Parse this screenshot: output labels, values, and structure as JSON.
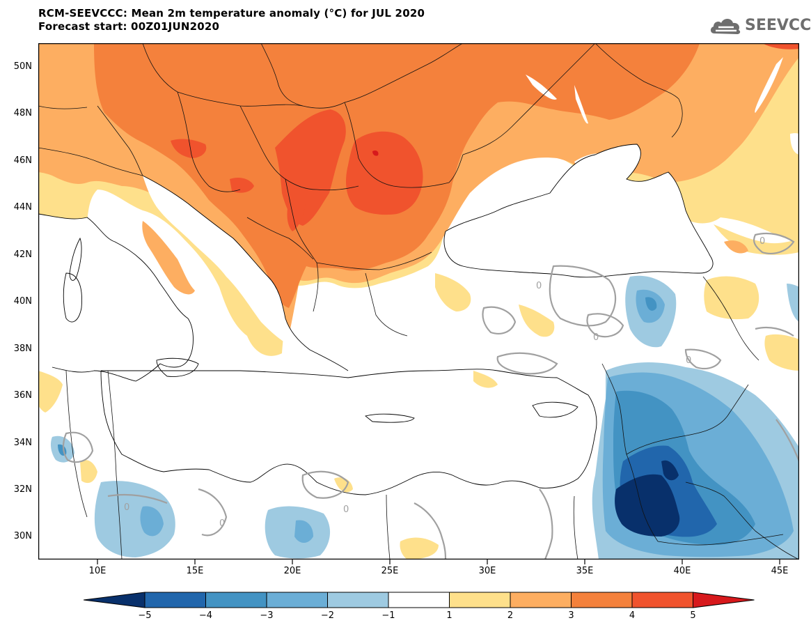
{
  "title_line1": "RCM-SEEVCCC: Mean 2m temperature anomaly (°C) for JUL 2020",
  "title_line2": "Forecast start: 00Z01JUN2020",
  "logo_text": "SEEVCCC",
  "y_axis_labels": [
    "50N",
    "48N",
    "46N",
    "44N",
    "42N",
    "40N",
    "38N",
    "36N",
    "34N",
    "32N",
    "30N"
  ],
  "x_axis_labels": [
    "10E",
    "15E",
    "20E",
    "25E",
    "30E",
    "35E",
    "40E",
    "45E"
  ],
  "contour_labels": [
    "0",
    "0",
    "0",
    "0",
    "0",
    "0",
    "0"
  ],
  "colorbar": {
    "labels": [
      "−5",
      "−4",
      "−3",
      "−2",
      "−1",
      "1",
      "2",
      "3",
      "4",
      "5"
    ],
    "colors": [
      "#08306b",
      "#2166ac",
      "#4393c3",
      "#6baed6",
      "#9ecae1",
      "#ffffff",
      "#fee08b",
      "#fdae61",
      "#f4813c",
      "#f0532d",
      "#d7191c"
    ]
  }
}
